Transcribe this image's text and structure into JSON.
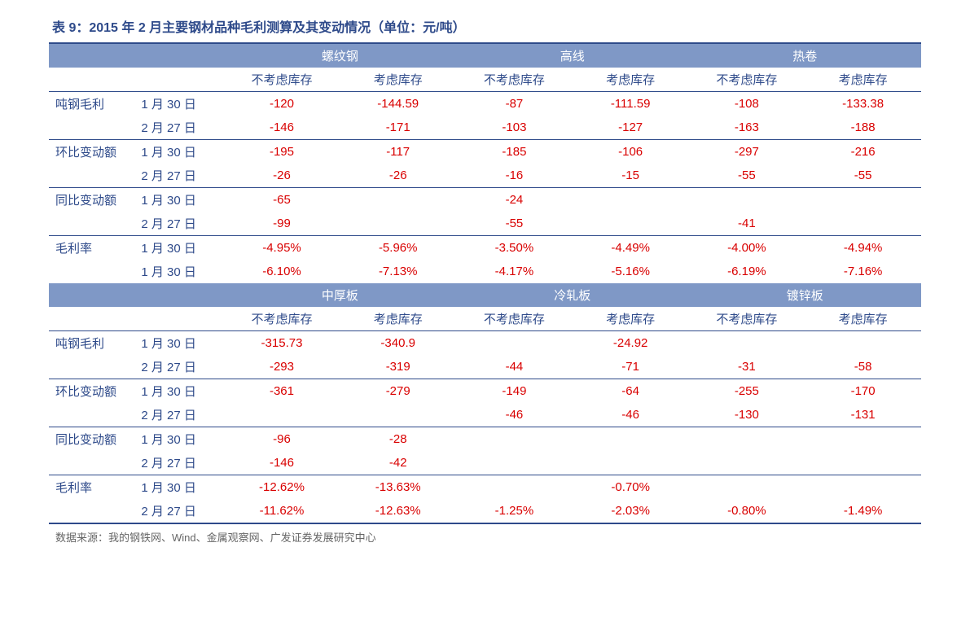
{
  "title": "表 9：2015 年 2 月主要钢材品种毛利测算及其变动情况（单位：元/吨）",
  "colors": {
    "title": "#2e4a8a",
    "band_bg": "#7f98c6",
    "band_fg": "#ffffff",
    "negative": "#d90000",
    "label": "#2e4a8a",
    "rule": "#2e4a8a"
  },
  "sections": [
    {
      "products": [
        "螺纹钢",
        "高线",
        "热卷"
      ],
      "sub_cols": [
        "不考虑库存",
        "考虑库存",
        "不考虑库存",
        "考虑库存",
        "不考虑库存",
        "考虑库存"
      ],
      "groups": [
        {
          "label": "吨钢毛利",
          "rows": [
            {
              "date": "1 月 30 日",
              "vals": [
                "-120",
                "-144.59",
                "-87",
                "-111.59",
                "-108",
                "-133.38"
              ]
            },
            {
              "date": "2 月 27 日",
              "vals": [
                "-146",
                "-171",
                "-103",
                "-127",
                "-163",
                "-188"
              ]
            }
          ]
        },
        {
          "label": "环比变动额",
          "rows": [
            {
              "date": "1 月 30 日",
              "vals": [
                "-195",
                "-117",
                "-185",
                "-106",
                "-297",
                "-216"
              ]
            },
            {
              "date": "2 月 27 日",
              "vals": [
                "-26",
                "-26",
                "-16",
                "-15",
                "-55",
                "-55"
              ]
            }
          ]
        },
        {
          "label": "同比变动额",
          "rows": [
            {
              "date": "1 月 30 日",
              "vals": [
                "-65",
                "",
                "-24",
                "",
                "",
                ""
              ]
            },
            {
              "date": "2 月 27 日",
              "vals": [
                "-99",
                "",
                "-55",
                "",
                "-41",
                ""
              ]
            }
          ]
        },
        {
          "label": "毛利率",
          "rows": [
            {
              "date": "1 月 30 日",
              "vals": [
                "-4.95%",
                "-5.96%",
                "-3.50%",
                "-4.49%",
                "-4.00%",
                "-4.94%"
              ]
            },
            {
              "date": "1 月 30 日",
              "vals": [
                "-6.10%",
                "-7.13%",
                "-4.17%",
                "-5.16%",
                "-6.19%",
                "-7.16%"
              ]
            }
          ]
        }
      ]
    },
    {
      "products": [
        "中厚板",
        "冷轧板",
        "镀锌板"
      ],
      "sub_cols": [
        "不考虑库存",
        "考虑库存",
        "不考虑库存",
        "考虑库存",
        "不考虑库存",
        "考虑库存"
      ],
      "groups": [
        {
          "label": "吨钢毛利",
          "rows": [
            {
              "date": "1 月 30 日",
              "vals": [
                "-315.73",
                "-340.9",
                "",
                "-24.92",
                "",
                ""
              ]
            },
            {
              "date": "2 月 27 日",
              "vals": [
                "-293",
                "-319",
                "-44",
                "-71",
                "-31",
                "-58"
              ]
            }
          ]
        },
        {
          "label": "环比变动额",
          "rows": [
            {
              "date": "1 月 30 日",
              "vals": [
                "-361",
                "-279",
                "-149",
                "-64",
                "-255",
                "-170"
              ]
            },
            {
              "date": "2 月 27 日",
              "vals": [
                "",
                "",
                "-46",
                "-46",
                "-130",
                "-131"
              ]
            }
          ]
        },
        {
          "label": "同比变动额",
          "rows": [
            {
              "date": "1 月 30 日",
              "vals": [
                "-96",
                "-28",
                "",
                "",
                "",
                ""
              ]
            },
            {
              "date": "2 月 27 日",
              "vals": [
                "-146",
                "-42",
                "",
                "",
                "",
                ""
              ]
            }
          ]
        },
        {
          "label": "毛利率",
          "rows": [
            {
              "date": "1 月 30 日",
              "vals": [
                "-12.62%",
                "-13.63%",
                "",
                "-0.70%",
                "",
                ""
              ]
            },
            {
              "date": "2 月 27 日",
              "vals": [
                "-11.62%",
                "-12.63%",
                "-1.25%",
                "-2.03%",
                "-0.80%",
                "-1.49%"
              ]
            }
          ]
        }
      ]
    }
  ],
  "source": "数据来源：我的钢铁网、Wind、金属观察网、广发证券发展研究中心"
}
